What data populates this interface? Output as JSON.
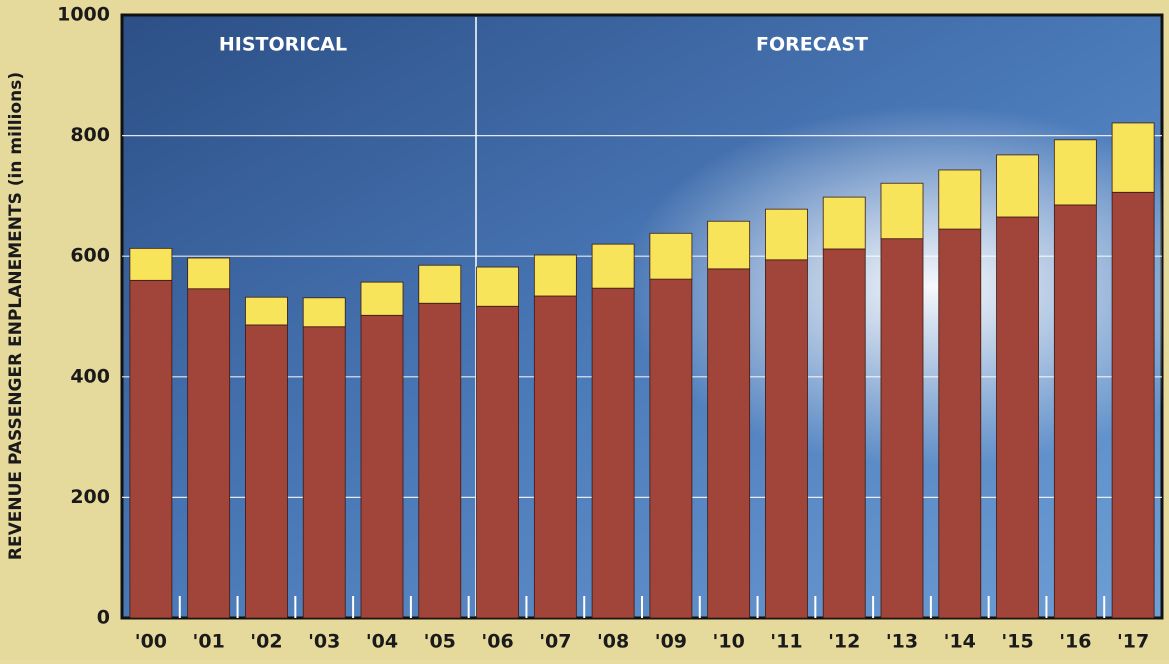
{
  "chart_data": {
    "type": "stacked-bar",
    "y_label": "REVENUE PASSENGER ENPLANEMENTS (in millions)",
    "annotations": [
      "HISTORICAL",
      "FORECAST"
    ],
    "categories": [
      "'00",
      "'01",
      "'02",
      "'03",
      "'04",
      "'05",
      "'06",
      "'07",
      "'08",
      "'09",
      "'10",
      "'11",
      "'12",
      "'13",
      "'14",
      "'15",
      "'16",
      "'17"
    ],
    "series": [
      {
        "color": "#a1453a",
        "values": [
          560,
          546,
          486,
          483,
          502,
          522,
          517,
          534,
          547,
          562,
          579,
          594,
          612,
          629,
          645,
          665,
          685,
          706
        ]
      },
      {
        "color": "#f8e45a",
        "values": [
          53,
          51,
          46,
          48,
          55,
          63,
          65,
          68,
          73,
          76,
          79,
          84,
          86,
          92,
          98,
          103,
          108,
          115
        ]
      }
    ],
    "ylim": [
      0,
      1000
    ],
    "yticks": [
      0,
      200,
      400,
      600,
      800,
      1000
    ],
    "grid": true
  }
}
